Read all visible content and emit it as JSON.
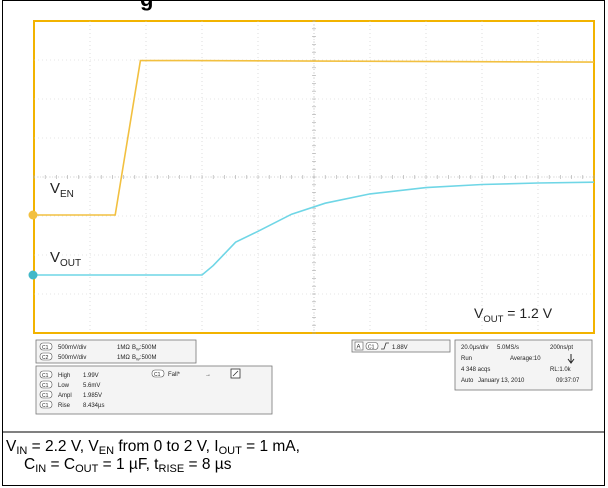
{
  "title_fragment": "g",
  "chart_data": {
    "type": "line",
    "title": "",
    "xlabel": "",
    "ylabel": "",
    "grid": true,
    "time_per_div_us": 20,
    "volts_per_div": 0.5,
    "x_divisions": 10,
    "y_divisions": 8,
    "series": [
      {
        "name": "V_EN",
        "color": "#f2c040",
        "x": [
          0,
          1.45,
          1.9,
          2.7,
          10
        ],
        "y": [
          0,
          0.0,
          1.98,
          1.98,
          1.96
        ]
      },
      {
        "name": "V_OUT",
        "color": "#6fd6e6",
        "x": [
          0,
          3.0,
          3.2,
          3.6,
          4.0,
          4.6,
          5.2,
          6.0,
          7.0,
          8.0,
          9.0,
          10
        ],
        "y": [
          0,
          0.0,
          0.12,
          0.42,
          0.56,
          0.78,
          0.92,
          1.04,
          1.12,
          1.16,
          1.18,
          1.19
        ]
      }
    ],
    "annotations": {
      "ven_label": "V",
      "ven_sub": "EN",
      "vout_label": "V",
      "vout_sub": "OUT",
      "vout_value_label": "V",
      "vout_value_sub": "OUT",
      "vout_value_text": " = 1.2 V"
    }
  },
  "scope_readouts": {
    "ch1_scale": "500mV/div",
    "ch1_imp": "1MΩ",
    "ch1_bw_prefix": "B",
    "ch1_bw_sub": "W",
    "ch1_bw": ":500M",
    "ch2_scale": "500mV/div",
    "ch2_imp": "1MΩ",
    "ch2_bw_prefix": "B",
    "ch2_bw_sub": "W",
    "ch2_bw": ":500M",
    "ch_tag_1": "C1",
    "ch_tag_2": "C2",
    "meas": [
      {
        "label": "High",
        "value": "1.99V"
      },
      {
        "label": "Low",
        "value": "5.6mV"
      },
      {
        "label": "Ampl",
        "value": "1.985V"
      },
      {
        "label": "Rise",
        "value": "8.434µs"
      }
    ],
    "fall_label": "Fall*",
    "fall_value": "→",
    "trigger_tag": "A",
    "trigger_level": "1.88V",
    "timebase": "20.0µs/div",
    "sample_rate": "5.0MS/s",
    "pts": "200ns/pt",
    "run": "Run",
    "average": "Average:10",
    "acqs": "4 348 acqs",
    "rl": "RL:1.0k",
    "auto": "Auto",
    "date": "January 13, 2010",
    "time": "09:37:07"
  },
  "caption": {
    "line1": [
      {
        "t": "V"
      },
      {
        "sub": "IN"
      },
      {
        "t": " = 2.2 V, V"
      },
      {
        "sub": "EN"
      },
      {
        "t": " from 0 to 2 V, I"
      },
      {
        "sub": "OUT"
      },
      {
        "t": " = 1 mA,"
      }
    ],
    "line2": [
      {
        "t": "C"
      },
      {
        "sub": "IN"
      },
      {
        "t": " = C"
      },
      {
        "sub": "OUT"
      },
      {
        "t": " = 1 µF, t"
      },
      {
        "sub": "RISE"
      },
      {
        "t": " = 8 µs"
      }
    ]
  }
}
